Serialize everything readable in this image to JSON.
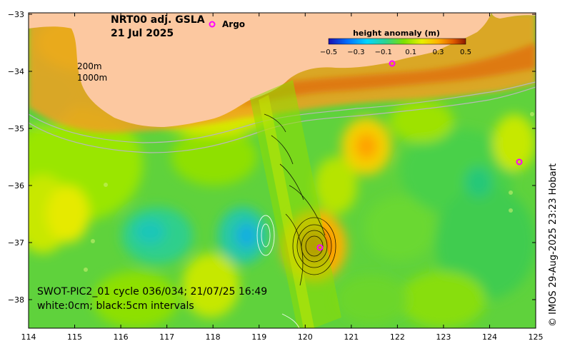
{
  "map": {
    "title_line1": "NRT00 adj. GSLA",
    "title_line2": "21 Jul 2025",
    "argo_label": "Argo",
    "colorbar_title": "height anomaly (m)",
    "colorbar_ticks": [
      "−0.5",
      "−0.3",
      "−0.1",
      "0.1",
      "0.3",
      "0.5"
    ],
    "colorbar_stops": [
      "#1a0fb0",
      "#0070ff",
      "#00d6ff",
      "#2ed38c",
      "#7ee000",
      "#e8ef00",
      "#ffb000",
      "#e05a00",
      "#8a1a00"
    ],
    "contour_labels": [
      "200m",
      "1000m"
    ],
    "swath_caption_line1": "SWOT-PIC2_01 cycle 036/034; 21/07/25 16:49",
    "swath_caption_line2": "white:0cm; black:5cm intervals",
    "credit": "© IMOS 29-Aug-2025 23:23 Hobart",
    "x_ticks": [
      "114",
      "115",
      "116",
      "117",
      "118",
      "119",
      "120",
      "121",
      "122",
      "123",
      "124",
      "125"
    ],
    "y_ticks": [
      "−33",
      "−34",
      "−35",
      "−36",
      "−37",
      "−38"
    ],
    "colors": {
      "land": "#fcc8a0",
      "argo": "#ff00ff",
      "ocean_base": "#6fd840",
      "bathymetry": "#b8b8b8"
    }
  }
}
